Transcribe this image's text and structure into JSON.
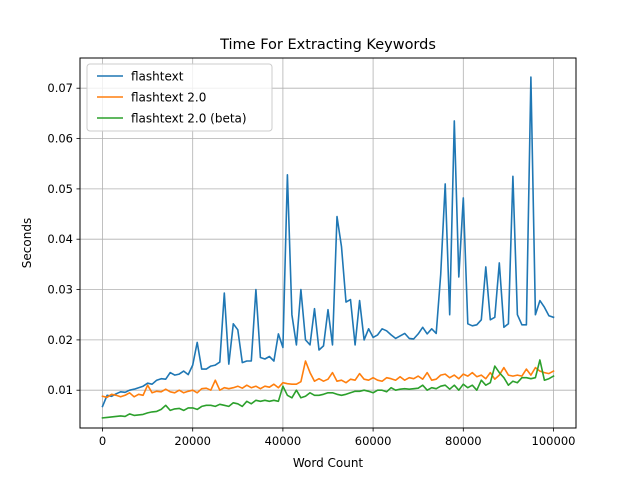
{
  "chart_data": {
    "type": "line",
    "title": "Time For Extracting Keywords",
    "xlabel": "Word Count",
    "ylabel": "Seconds",
    "xlim": [
      -5000,
      105000
    ],
    "ylim": [
      0.0025,
      0.076
    ],
    "grid": true,
    "legend_position": "top-left",
    "x_ticks": [
      0,
      20000,
      40000,
      60000,
      80000,
      100000
    ],
    "x_tick_labels": [
      "0",
      "20000",
      "40000",
      "60000",
      "80000",
      "100000"
    ],
    "y_ticks": [
      0.01,
      0.02,
      0.03,
      0.04,
      0.05,
      0.06,
      0.07
    ],
    "y_tick_labels": [
      "0.01",
      "0.02",
      "0.03",
      "0.04",
      "0.05",
      "0.06",
      "0.07"
    ],
    "x": [
      0,
      1000,
      2000,
      3000,
      4000,
      5000,
      6000,
      7000,
      8000,
      9000,
      10000,
      11000,
      12000,
      13000,
      14000,
      15000,
      16000,
      17000,
      18000,
      19000,
      20000,
      21000,
      22000,
      23000,
      24000,
      25000,
      26000,
      27000,
      28000,
      29000,
      30000,
      31000,
      32000,
      33000,
      34000,
      35000,
      36000,
      37000,
      38000,
      39000,
      40000,
      41000,
      42000,
      43000,
      44000,
      45000,
      46000,
      47000,
      48000,
      49000,
      50000,
      51000,
      52000,
      53000,
      54000,
      55000,
      56000,
      57000,
      58000,
      59000,
      60000,
      61000,
      62000,
      63000,
      64000,
      65000,
      66000,
      67000,
      68000,
      69000,
      70000,
      71000,
      72000,
      73000,
      74000,
      75000,
      76000,
      77000,
      78000,
      79000,
      80000,
      81000,
      82000,
      83000,
      84000,
      85000,
      86000,
      87000,
      88000,
      89000,
      90000,
      91000,
      92000,
      93000,
      94000,
      95000,
      96000,
      97000,
      98000,
      99000,
      100000
    ],
    "series": [
      {
        "name": "flashtext",
        "color": "#1f77b4",
        "values": [
          0.0068,
          0.009,
          0.0088,
          0.0093,
          0.0097,
          0.0096,
          0.01,
          0.0102,
          0.0105,
          0.0108,
          0.0114,
          0.0112,
          0.012,
          0.0123,
          0.0122,
          0.0135,
          0.013,
          0.0132,
          0.0138,
          0.0131,
          0.015,
          0.0195,
          0.0142,
          0.0142,
          0.0148,
          0.015,
          0.0156,
          0.0293,
          0.0152,
          0.0232,
          0.022,
          0.0155,
          0.0158,
          0.0158,
          0.03,
          0.0165,
          0.0162,
          0.0167,
          0.0158,
          0.0212,
          0.0185,
          0.0528,
          0.025,
          0.019,
          0.03,
          0.02,
          0.019,
          0.0262,
          0.018,
          0.0188,
          0.026,
          0.019,
          0.0445,
          0.0385,
          0.0275,
          0.028,
          0.019,
          0.0278,
          0.02,
          0.0222,
          0.0205,
          0.021,
          0.0222,
          0.0218,
          0.021,
          0.0203,
          0.0208,
          0.0213,
          0.0203,
          0.0202,
          0.0212,
          0.0225,
          0.0212,
          0.0222,
          0.0213,
          0.033,
          0.051,
          0.025,
          0.0635,
          0.0325,
          0.0482,
          0.0232,
          0.0228,
          0.023,
          0.024,
          0.0345,
          0.024,
          0.0245,
          0.0353,
          0.0225,
          0.0232,
          0.0525,
          0.025,
          0.023,
          0.023,
          0.0722,
          0.025,
          0.0278,
          0.0265,
          0.0248,
          0.0245
        ]
      },
      {
        "name": "flashtext 2.0",
        "color": "#ff7f0e",
        "values": [
          0.0088,
          0.0086,
          0.0092,
          0.009,
          0.0087,
          0.009,
          0.0095,
          0.0087,
          0.0092,
          0.009,
          0.011,
          0.0095,
          0.0098,
          0.0097,
          0.0102,
          0.0097,
          0.0095,
          0.01,
          0.0095,
          0.0098,
          0.01,
          0.0095,
          0.0103,
          0.0104,
          0.01,
          0.012,
          0.01,
          0.0105,
          0.0103,
          0.0105,
          0.0108,
          0.0104,
          0.011,
          0.0105,
          0.0108,
          0.0103,
          0.0108,
          0.0106,
          0.0112,
          0.0105,
          0.0115,
          0.0113,
          0.0112,
          0.0112,
          0.0117,
          0.0158,
          0.0135,
          0.0118,
          0.0123,
          0.0118,
          0.0122,
          0.0135,
          0.0118,
          0.012,
          0.0115,
          0.0122,
          0.012,
          0.0133,
          0.0122,
          0.012,
          0.0125,
          0.012,
          0.0118,
          0.0125,
          0.0123,
          0.012,
          0.0127,
          0.012,
          0.0125,
          0.0123,
          0.0128,
          0.0122,
          0.0135,
          0.012,
          0.0122,
          0.013,
          0.0132,
          0.0125,
          0.013,
          0.0123,
          0.0132,
          0.0128,
          0.0135,
          0.0127,
          0.013,
          0.0123,
          0.0135,
          0.0122,
          0.013,
          0.0145,
          0.013,
          0.0128,
          0.013,
          0.0128,
          0.0142,
          0.013,
          0.0145,
          0.0138,
          0.0135,
          0.0133,
          0.0138
        ]
      },
      {
        "name": "flashtext 2.0 (beta)",
        "color": "#2ca02c",
        "values": [
          0.0045,
          0.0046,
          0.0047,
          0.0048,
          0.0049,
          0.0048,
          0.0053,
          0.005,
          0.0051,
          0.0052,
          0.0055,
          0.0057,
          0.0058,
          0.0062,
          0.007,
          0.006,
          0.0063,
          0.0064,
          0.006,
          0.0065,
          0.0065,
          0.0062,
          0.0068,
          0.007,
          0.007,
          0.0068,
          0.0072,
          0.007,
          0.0068,
          0.0075,
          0.0073,
          0.0068,
          0.0078,
          0.0073,
          0.008,
          0.0078,
          0.008,
          0.0078,
          0.008,
          0.0078,
          0.0108,
          0.009,
          0.0085,
          0.01,
          0.0085,
          0.0088,
          0.0095,
          0.009,
          0.009,
          0.0092,
          0.0095,
          0.0095,
          0.0092,
          0.009,
          0.0092,
          0.0095,
          0.0098,
          0.0098,
          0.01,
          0.0098,
          0.0095,
          0.01,
          0.01,
          0.0097,
          0.0105,
          0.01,
          0.0102,
          0.0103,
          0.0102,
          0.0103,
          0.0104,
          0.011,
          0.01,
          0.0105,
          0.0103,
          0.0108,
          0.011,
          0.0102,
          0.011,
          0.01,
          0.0112,
          0.0105,
          0.011,
          0.01,
          0.012,
          0.011,
          0.0115,
          0.0148,
          0.0135,
          0.0125,
          0.011,
          0.0118,
          0.0115,
          0.0125,
          0.0125,
          0.0123,
          0.0125,
          0.016,
          0.012,
          0.0123,
          0.0128
        ]
      }
    ]
  }
}
